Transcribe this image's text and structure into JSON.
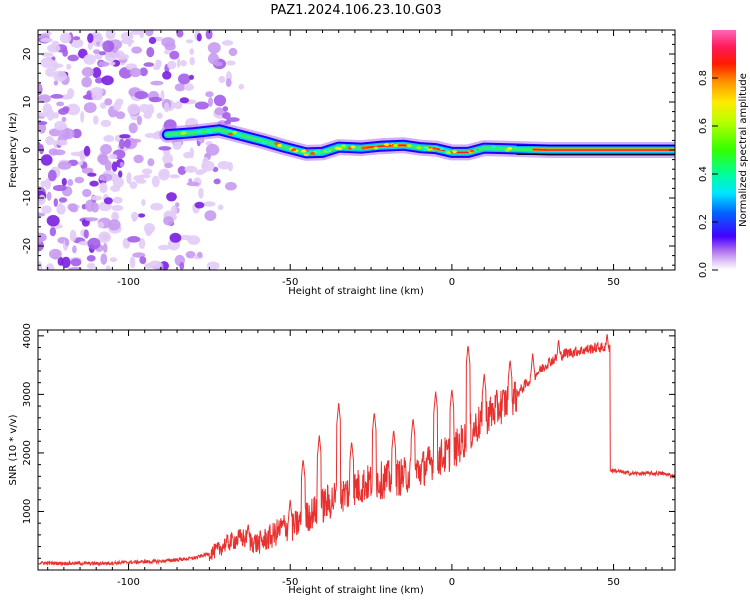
{
  "title": "PAZ1.2024.106.23.10.G03",
  "chart_data": [
    {
      "type": "heatmap",
      "xlabel": "Height of straight line (km)",
      "ylabel": "Frequency (Hz)",
      "xlim": [
        -128,
        69
      ],
      "ylim": [
        -25,
        25
      ],
      "xticks": [
        -100,
        -50,
        0,
        50
      ],
      "yticks": [
        -20,
        -10,
        0,
        10,
        20
      ],
      "colorbar": {
        "label": "Normalized spectral amplitude",
        "range": [
          0,
          1
        ],
        "ticks": [
          0.0,
          0.2,
          0.4,
          0.6,
          0.8
        ],
        "colormap": "gist_ncar"
      },
      "signal_track": [
        {
          "x": -88,
          "y": 3.2
        },
        {
          "x": -80,
          "y": 3.6
        },
        {
          "x": -72,
          "y": 4.2
        },
        {
          "x": -65,
          "y": 3.0
        },
        {
          "x": -58,
          "y": 1.8
        },
        {
          "x": -52,
          "y": 0.6
        },
        {
          "x": -45,
          "y": -0.6
        },
        {
          "x": -40,
          "y": -0.5
        },
        {
          "x": -35,
          "y": 0.6
        },
        {
          "x": -28,
          "y": 0.4
        },
        {
          "x": -22,
          "y": 0.8
        },
        {
          "x": -15,
          "y": 1.0
        },
        {
          "x": -10,
          "y": 0.5
        },
        {
          "x": -5,
          "y": 0.3
        },
        {
          "x": 0,
          "y": -0.5
        },
        {
          "x": 5,
          "y": -0.5
        },
        {
          "x": 10,
          "y": 0.4
        },
        {
          "x": 20,
          "y": 0.2
        },
        {
          "x": 30,
          "y": 0
        },
        {
          "x": 50,
          "y": 0
        },
        {
          "x": 69,
          "y": 0
        }
      ],
      "noise_region_x": [
        -128,
        -75
      ]
    },
    {
      "type": "line",
      "xlabel": "Height of straight line (km)",
      "ylabel": "SNR (10 * v/v)",
      "xlim": [
        -128,
        69
      ],
      "ylim": [
        0,
        4100
      ],
      "xticks": [
        -100,
        -50,
        0,
        50
      ],
      "yticks": [
        1000,
        2000,
        3000,
        4000
      ],
      "color": "#e8302e",
      "series": [
        {
          "x": [
            -128,
            -110,
            -90,
            -80,
            -75,
            -72,
            -70,
            -65,
            -60,
            -55,
            -52,
            -50,
            -45,
            -40,
            -35,
            -30,
            -25,
            -20,
            -15,
            -10,
            -5,
            0,
            5,
            10,
            15,
            20,
            25,
            30,
            35,
            40,
            45,
            48,
            49,
            50,
            55,
            60,
            65,
            69
          ],
          "y": [
            120,
            110,
            150,
            200,
            280,
            350,
            450,
            550,
            450,
            600,
            750,
            700,
            900,
            1100,
            1250,
            1400,
            1500,
            1550,
            1600,
            1700,
            1900,
            2000,
            2300,
            2600,
            2800,
            3000,
            3300,
            3550,
            3700,
            3750,
            3800,
            3800,
            1700,
            1700,
            1650,
            1650,
            1650,
            1600
          ],
          "peaks": [
            {
              "x": -63,
              "y": 800
            },
            {
              "x": -50,
              "y": 1200
            },
            {
              "x": -46,
              "y": 1900
            },
            {
              "x": -41,
              "y": 2300
            },
            {
              "x": -35,
              "y": 2850
            },
            {
              "x": -31,
              "y": 2200
            },
            {
              "x": -24,
              "y": 2700
            },
            {
              "x": -18,
              "y": 2400
            },
            {
              "x": -12,
              "y": 2600
            },
            {
              "x": -5,
              "y": 3050
            },
            {
              "x": 0,
              "y": 3100
            },
            {
              "x": 5,
              "y": 3850
            },
            {
              "x": 10,
              "y": 3350
            },
            {
              "x": 18,
              "y": 3600
            },
            {
              "x": 25,
              "y": 3700
            },
            {
              "x": 33,
              "y": 3950
            },
            {
              "x": 48,
              "y": 4050
            }
          ]
        }
      ]
    }
  ]
}
